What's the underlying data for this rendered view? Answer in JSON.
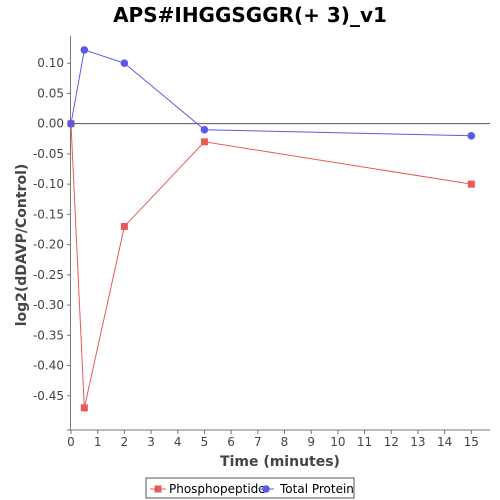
{
  "chart_data": {
    "type": "line",
    "title": "APS#IHGGSGGR(+ 3)_v1",
    "xlabel": "Time (minutes)",
    "ylabel": "log2(dDAVP/Control)",
    "xlim": [
      0,
      15.7
    ],
    "ylim": [
      -0.5,
      0.145
    ],
    "xticks": [
      0,
      1,
      2,
      3,
      4,
      5,
      6,
      7,
      8,
      9,
      10,
      11,
      12,
      13,
      14,
      15
    ],
    "yticks": [
      0.1,
      0.05,
      0.0,
      -0.05,
      -0.1,
      -0.15,
      -0.2,
      -0.25,
      -0.3,
      -0.35,
      -0.4,
      -0.45
    ],
    "ytick_labels": [
      "0.10",
      "0.05",
      "0.00",
      "-0.05",
      "-0.10",
      "-0.15",
      "-0.20",
      "-0.25",
      "-0.30",
      "-0.35",
      "-0.40",
      "-0.45"
    ],
    "zero_line": true,
    "grid": false,
    "legend_position": "bottom",
    "series": [
      {
        "name": "Phosphopeptide",
        "color": "#e8595a",
        "marker": "square",
        "x": [
          0,
          0.5,
          2,
          5,
          15
        ],
        "y": [
          0.0,
          -0.47,
          -0.17,
          -0.03,
          -0.1
        ]
      },
      {
        "name": "Total Protein",
        "color": "#5a5ae8",
        "marker": "circle",
        "x": [
          0,
          0.5,
          2,
          5,
          15
        ],
        "y": [
          0.0,
          0.122,
          0.1,
          -0.01,
          -0.02
        ]
      }
    ]
  }
}
